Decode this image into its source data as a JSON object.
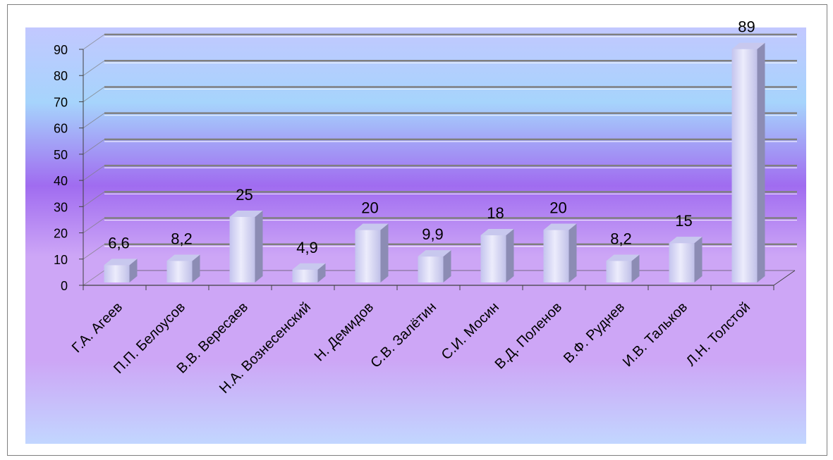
{
  "chart_data": {
    "type": "bar",
    "categories": [
      "Г.А. Агеев",
      "П.П. Белоусов",
      "В.В. Вересаев",
      "Н.А. Вознесенский",
      "Н. Демидов",
      "С.В. Залётин",
      "С.И. Мосин",
      "В.Д. Поленов",
      "В.Ф. Руднев",
      "И.В. Тальков",
      "Л.Н. Толстой"
    ],
    "values": [
      6.6,
      8.2,
      25,
      4.9,
      20,
      9.9,
      18,
      20,
      8.2,
      15,
      89
    ],
    "value_labels": [
      "6,6",
      "8,2",
      "25",
      "4,9",
      "20",
      "9,9",
      "18",
      "20",
      "8,2",
      "15",
      "89"
    ],
    "y_ticks": [
      "0",
      "10",
      "20",
      "30",
      "40",
      "50",
      "60",
      "70",
      "80",
      "90"
    ],
    "ylim": [
      0,
      90
    ],
    "title": "",
    "xlabel": "",
    "ylabel": "",
    "grid": true,
    "legend": "none",
    "style": "3d-column",
    "colors": {
      "bar_front": "#dcdcf6",
      "bar_side": "#8c8cb4",
      "bar_top": "#c8c8ee",
      "gridline": "#7f7f7f",
      "bg_top": "#c2c8ff",
      "bg_sky": "#a6d4fc",
      "bg_violet": "#a06cf0",
      "bg_lavender": "#cda6f6",
      "bg_bottom": "#c2d6ff"
    }
  }
}
